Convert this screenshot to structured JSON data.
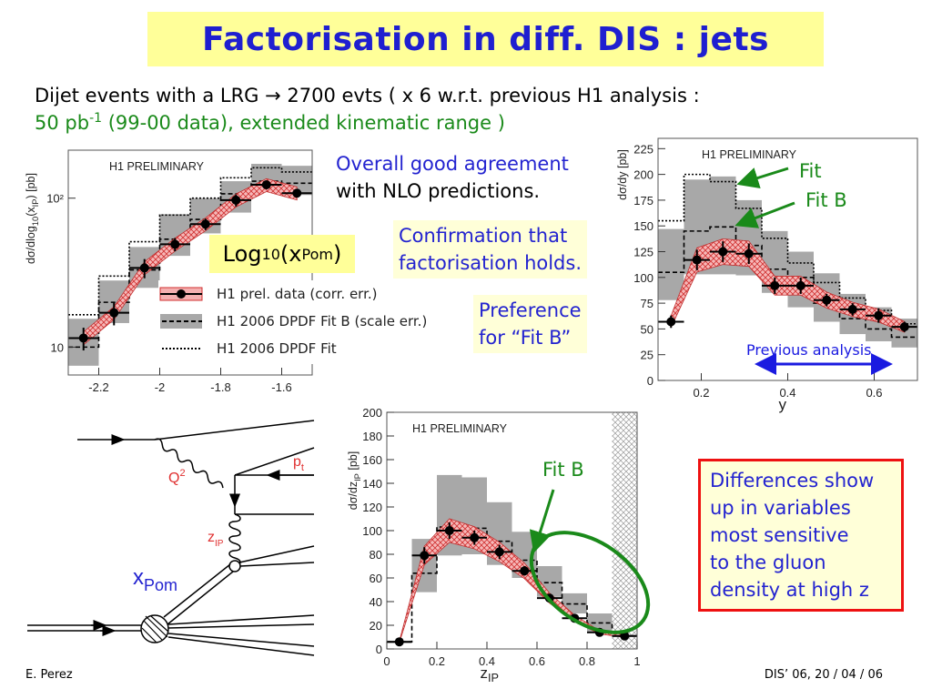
{
  "slide": {
    "title": "Factorisation in diff. DIS : jets",
    "intro_line1": "Dijet events with a LRG → 2700 evts  ( x 6 w.r.t. previous H1 analysis :",
    "intro_line2_pre": "50 pb",
    "intro_line2_sup": "-1",
    "intro_line2_post": " (99-00 data), extended kinematic range )",
    "note_agreement": [
      "Overall good agreement",
      "with  NLO predictions."
    ],
    "note_confirmation": [
      "Confirmation that",
      "factorisation holds."
    ],
    "note_preference": [
      "Preference",
      "for “Fit B”"
    ],
    "log_label": {
      "pre": "Log",
      "sub1": "10",
      "mid": "(x",
      "sub2": "Pom",
      "post": ")"
    },
    "differences": [
      "Differences show",
      "up in variables",
      "most sensitive",
      "to the gluon",
      "density at high z"
    ],
    "footer_author": "E. Perez",
    "footer_conf": "DIS’ 06, 20 / 04 / 06"
  },
  "legend": [
    {
      "label": "H1 prel. data (corr. err.)",
      "style": "data-band"
    },
    {
      "label": "H1 2006 DPDF Fit B (scale err.)",
      "style": "grey-dashed"
    },
    {
      "label": "H1 2006 DPDF Fit",
      "style": "dotted"
    }
  ],
  "annotations": {
    "fit": "Fit",
    "fit_b": "Fit B",
    "previous": "Previous analysis",
    "fit_b_z": "Fit B"
  },
  "diagram": {
    "q2": "Q",
    "q2_sup": "2",
    "pt": "p",
    "pt_sub": "t",
    "zip": "z",
    "zip_sub": "IP",
    "xpom": "x",
    "xpom_sub": "Pom"
  },
  "colors": {
    "title_bg": "#ffff99",
    "title_text": "#1f1fd0",
    "note_blue": "#2323d0",
    "green": "#1a8a1a",
    "red_box": "#ee1111",
    "data_band": "#e06060",
    "fit_b_band": "#a8a8a8"
  },
  "chart_data": [
    {
      "type": "bar",
      "title": "H1 PRELIMINARY",
      "xlabel": "",
      "ylabel": [
        {
          "t": "dσ/dlog"
        },
        {
          "t": "10",
          "sub": true
        },
        {
          "t": "(x"
        },
        {
          "t": "IP",
          "sub": true
        },
        {
          "t": ")  [pb]"
        }
      ],
      "ylog": true,
      "xlim": [
        -2.3,
        -1.5
      ],
      "ylim": [
        6.5,
        210
      ],
      "x_ticks": [
        -2.2,
        -2.0,
        -1.8,
        -1.6
      ],
      "x_tick_labels": [
        "-2.2",
        "-2",
        "-1.8",
        "-1.6"
      ],
      "y_ticks": [
        10,
        100
      ],
      "y_tick_labels": [
        "10",
        "10²"
      ],
      "bin_edges": [
        -2.3,
        -2.2,
        -2.1,
        -2.0,
        -1.9,
        -1.8,
        -1.7,
        -1.6,
        -1.5
      ],
      "series": [
        {
          "name": "H1 prel. data (corr. err.)",
          "values": [
            11.5,
            17,
            34,
            49,
            67,
            97,
            123,
            108
          ],
          "errors": [
            2,
            3,
            5,
            5,
            6,
            9,
            8,
            6
          ]
        },
        {
          "name": "H1 2006 DPDF Fit B (scale err.)",
          "values": [
            10,
            20,
            33,
            53,
            72,
            107,
            130,
            126
          ],
          "band": [
            [
              7.5,
              15.5
            ],
            [
              14.5,
              28
            ],
            [
              25,
              47
            ],
            [
              41,
              78
            ],
            [
              58,
              100
            ],
            [
              80,
              130
            ],
            [
              115,
              170
            ],
            [
              105,
              165
            ]
          ]
        },
        {
          "name": "H1 2006 DPDF Fit",
          "values": [
            16.5,
            30,
            51,
            77,
            100,
            137,
            160,
            150
          ]
        }
      ]
    },
    {
      "type": "bar",
      "title": "H1 PRELIMINARY",
      "xlabel": "y",
      "ylabel": [
        {
          "t": "dσ/dy  [pb]"
        }
      ],
      "ylog": false,
      "xlim": [
        0.1,
        0.7
      ],
      "ylim": [
        0,
        235
      ],
      "x_ticks": [
        0.2,
        0.4,
        0.6
      ],
      "x_tick_labels": [
        "0.2",
        "0.4",
        "0.6"
      ],
      "y_ticks": [
        0,
        25,
        50,
        75,
        100,
        125,
        150,
        175,
        200,
        225
      ],
      "y_tick_labels": [
        "0",
        "25",
        "50",
        "75",
        "100",
        "125",
        "150",
        "175",
        "200",
        "225"
      ],
      "bin_edges": [
        0.1,
        0.16,
        0.22,
        0.28,
        0.34,
        0.4,
        0.46,
        0.52,
        0.58,
        0.64,
        0.7
      ],
      "series": [
        {
          "name": "H1 prel. data (corr. err.)",
          "values": [
            57,
            117,
            125,
            123,
            92,
            92,
            78,
            69,
            63,
            52
          ],
          "errors": [
            6,
            10,
            10,
            10,
            8,
            8,
            6,
            6,
            7,
            5
          ]
        },
        {
          "name": "H1 2006 DPDF Fit B (scale err.)",
          "values": [
            105,
            145,
            149,
            131,
            108,
            100,
            75,
            60,
            50,
            42
          ],
          "band": [
            [
              78,
              147
            ],
            [
              103,
              195
            ],
            [
              103,
              198
            ],
            [
              102,
              175
            ],
            [
              85,
              145
            ],
            [
              71,
              125
            ],
            [
              57,
              104
            ],
            [
              45,
              84
            ],
            [
              38,
              71
            ],
            [
              32,
              60
            ]
          ]
        },
        {
          "name": "H1 2006 DPDF Fit",
          "values": [
            155,
            200,
            193,
            167,
            138,
            114,
            95,
            80,
            68,
            55
          ]
        }
      ]
    },
    {
      "type": "bar",
      "title": "H1 PRELIMINARY",
      "xlabel": [
        {
          "t": "z"
        },
        {
          "t": "IP",
          "sub": true
        }
      ],
      "ylabel": [
        {
          "t": "dσ/dz"
        },
        {
          "t": "IP",
          "sub": true
        },
        {
          "t": "  [pb]"
        }
      ],
      "ylog": false,
      "xlim": [
        0,
        1
      ],
      "ylim": [
        0,
        200
      ],
      "x_ticks": [
        0,
        0.2,
        0.4,
        0.6,
        0.8,
        1
      ],
      "x_tick_labels": [
        "0",
        "0.2",
        "0.4",
        "0.6",
        "0.8",
        "1"
      ],
      "y_ticks": [
        0,
        20,
        40,
        60,
        80,
        100,
        120,
        140,
        160,
        180,
        200
      ],
      "y_tick_labels": [
        "0",
        "20",
        "40",
        "60",
        "80",
        "100",
        "120",
        "140",
        "160",
        "180",
        "200"
      ],
      "excluded_region": [
        0.9,
        1.0
      ],
      "bin_edges": [
        0,
        0.1,
        0.2,
        0.3,
        0.4,
        0.5,
        0.6,
        0.7,
        0.8,
        0.9,
        1.0
      ],
      "series": [
        {
          "name": "H1 prel. data (corr. err.)",
          "values": [
            6,
            79,
            100,
            94,
            82,
            66,
            43,
            26,
            14,
            11
          ],
          "errors": [
            1.5,
            7,
            7,
            6,
            6,
            4,
            3,
            2,
            2,
            2
          ]
        },
        {
          "name": "H1 2006 DPDF Fit B (scale err.)",
          "values": [
            6,
            64,
            103,
            102,
            91,
            75,
            56,
            38,
            22,
            11
          ],
          "band": [
            [
              5,
              7
            ],
            [
              48,
              93
            ],
            [
              79,
              147
            ],
            [
              80,
              145
            ],
            [
              71,
              124
            ],
            [
              60,
              99
            ],
            [
              44,
              70
            ],
            [
              30,
              47
            ],
            [
              15,
              30
            ],
            [
              10,
              12
            ]
          ]
        }
      ]
    }
  ]
}
